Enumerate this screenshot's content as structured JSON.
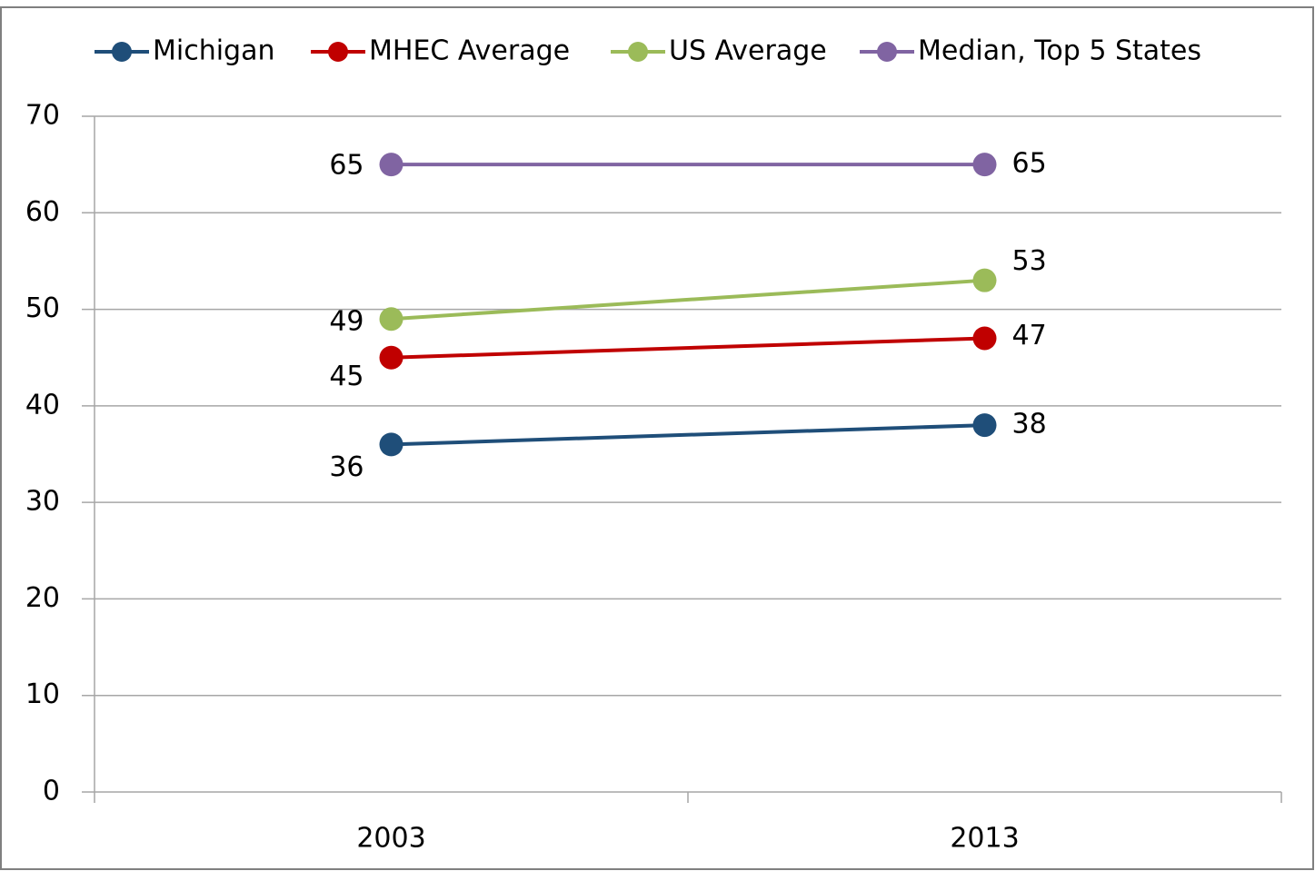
{
  "chart_data": {
    "type": "line",
    "categories": [
      "2003",
      "2013"
    ],
    "series": [
      {
        "name": "Michigan",
        "color": "#1f4e79",
        "values": [
          36,
          38
        ]
      },
      {
        "name": "MHEC Average",
        "color": "#c00000",
        "values": [
          45,
          47
        ]
      },
      {
        "name": "US Average",
        "color": "#9bbb59",
        "values": [
          49,
          53
        ]
      },
      {
        "name": "Median, Top 5 States",
        "color": "#8064a2",
        "values": [
          65,
          65
        ]
      }
    ],
    "ylim": [
      0,
      70
    ],
    "yticks": [
      0,
      10,
      20,
      30,
      40,
      50,
      60,
      70
    ],
    "grid": true,
    "legend": "top"
  }
}
